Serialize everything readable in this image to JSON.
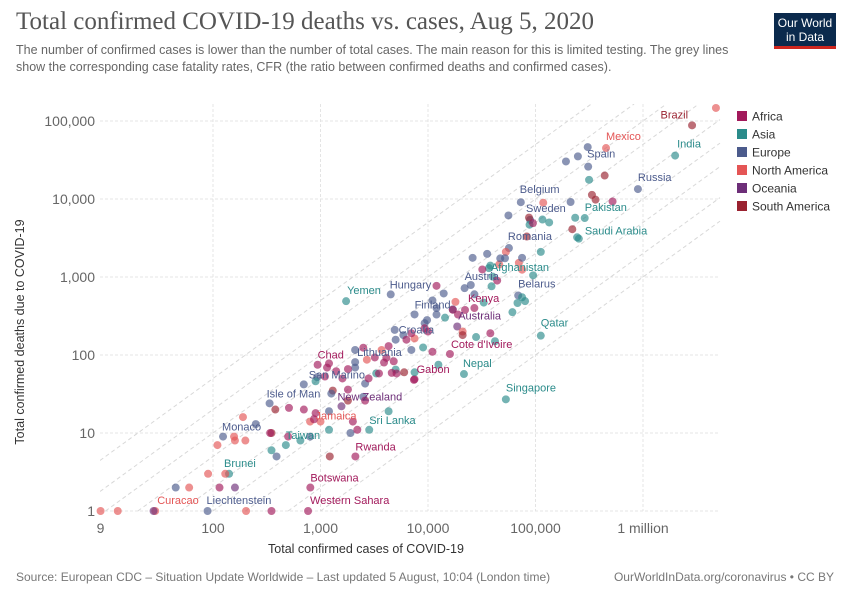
{
  "header": {
    "title": "Total confirmed COVID-19 deaths vs. cases, Aug 5, 2020",
    "subtitle": "The number of confirmed cases is lower than the number of total cases. The main reason for this is limited testing. The grey lines show the corresponding case fatality rates, CFR (the ratio between confirmed deaths and confirmed cases).",
    "logo": "Our World in Data"
  },
  "footer": {
    "source": "Source: European CDC – Situation Update Worldwide – Last updated 5 August, 10:04 (London time)",
    "url": "OurWorldInData.org/coronavirus • CC BY"
  },
  "chart_data": {
    "type": "scatter",
    "title": "Total confirmed COVID-19 deaths vs. cases, Aug 5, 2020",
    "xlabel": "Total confirmed cases of COVID-19",
    "ylabel": "Total confirmed deaths due to COVID-19",
    "xscale": "log",
    "yscale": "log",
    "xlim": [
      9,
      4900000
    ],
    "ylim": [
      1,
      150000
    ],
    "xticks": [
      {
        "v": 9,
        "label": "9"
      },
      {
        "v": 100,
        "label": "100"
      },
      {
        "v": 1000,
        "label": "1,000"
      },
      {
        "v": 10000,
        "label": "10,000"
      },
      {
        "v": 100000,
        "label": "100,000"
      },
      {
        "v": 1000000,
        "label": "1 million"
      }
    ],
    "yticks": [
      {
        "v": 1,
        "label": "1"
      },
      {
        "v": 10,
        "label": "10"
      },
      {
        "v": 100,
        "label": "100"
      },
      {
        "v": 1000,
        "label": "1,000"
      },
      {
        "v": 10000,
        "label": "10,000"
      },
      {
        "v": 100000,
        "label": "100,000"
      }
    ],
    "grid": true,
    "cfr_lines": [
      0.001,
      0.002,
      0.005,
      0.01,
      0.02,
      0.05,
      0.1,
      0.2,
      0.5
    ],
    "legend_position": "right",
    "legend": [
      {
        "name": "Africa",
        "color": "#a2195b"
      },
      {
        "name": "Asia",
        "color": "#2a8b8a"
      },
      {
        "name": "Europe",
        "color": "#4c5b8c"
      },
      {
        "name": "North America",
        "color": "#e45555"
      },
      {
        "name": "Oceania",
        "color": "#6d2e78"
      },
      {
        "name": "South America",
        "color": "#9a2230"
      }
    ],
    "points": [
      {
        "label": "Brazil",
        "c": "South America",
        "x": 2860000,
        "y": 88000
      },
      {
        "c": "North America",
        "x": 4770000,
        "y": 147000
      },
      {
        "label": "Mexico",
        "c": "North America",
        "x": 453000,
        "y": 45000
      },
      {
        "label": "India",
        "c": "Asia",
        "x": 1990000,
        "y": 36000
      },
      {
        "label": "Spain",
        "c": "Europe",
        "x": 309000,
        "y": 26000
      },
      {
        "label": "Russia",
        "c": "Europe",
        "x": 897000,
        "y": 13400
      },
      {
        "label": "Belgium",
        "c": "Europe",
        "x": 73000,
        "y": 9100
      },
      {
        "label": "Sweden",
        "c": "Europe",
        "x": 89000,
        "y": 5400
      },
      {
        "label": "Pakistan",
        "c": "Asia",
        "x": 287000,
        "y": 5700
      },
      {
        "label": "Saudi Arabia",
        "c": "Asia",
        "x": 253000,
        "y": 3100
      },
      {
        "label": "Romania",
        "c": "Europe",
        "x": 56600,
        "y": 2350
      },
      {
        "label": "Afghanistan",
        "c": "Asia",
        "x": 36900,
        "y": 1300
      },
      {
        "label": "Austria",
        "c": "Europe",
        "x": 21900,
        "y": 719
      },
      {
        "label": "Belarus",
        "c": "Europe",
        "x": 69000,
        "y": 580
      },
      {
        "label": "Qatar",
        "c": "Asia",
        "x": 112000,
        "y": 177
      },
      {
        "label": "Singapore",
        "c": "Asia",
        "x": 53000,
        "y": 27
      },
      {
        "label": "Nepal",
        "c": "Asia",
        "x": 21600,
        "y": 57
      },
      {
        "label": "Kenya",
        "c": "Africa",
        "x": 22100,
        "y": 378
      },
      {
        "label": "Finland",
        "c": "Europe",
        "x": 7500,
        "y": 331
      },
      {
        "label": "Australia",
        "c": "Oceania",
        "x": 18700,
        "y": 232
      },
      {
        "label": "Hungary",
        "c": "Europe",
        "x": 4500,
        "y": 598
      },
      {
        "label": "Yemen",
        "c": "Asia",
        "x": 1730,
        "y": 490
      },
      {
        "label": "Croatia",
        "c": "Europe",
        "x": 5000,
        "y": 157
      },
      {
        "label": "Cote d'Ivoire",
        "c": "Africa",
        "x": 16000,
        "y": 103
      },
      {
        "label": "Gabon",
        "c": "Africa",
        "x": 7500,
        "y": 49
      },
      {
        "label": "Lithuania",
        "c": "Europe",
        "x": 2100,
        "y": 81
      },
      {
        "label": "Chad",
        "c": "Africa",
        "x": 940,
        "y": 75
      },
      {
        "label": "San Marino",
        "c": "Europe",
        "x": 699,
        "y": 42
      },
      {
        "label": "Isle of Man",
        "c": "Europe",
        "x": 336,
        "y": 24
      },
      {
        "label": "New Zealand",
        "c": "Oceania",
        "x": 1567,
        "y": 22
      },
      {
        "label": "Jamaica",
        "c": "North America",
        "x": 1000,
        "y": 14
      },
      {
        "label": "Sri Lanka",
        "c": "Asia",
        "x": 2839,
        "y": 11
      },
      {
        "label": "Taiwan",
        "c": "Asia",
        "x": 476,
        "y": 7
      },
      {
        "label": "Monaco",
        "c": "Europe",
        "x": 124,
        "y": 9
      },
      {
        "label": "Brunei",
        "c": "Asia",
        "x": 141,
        "y": 3
      },
      {
        "label": "Rwanda",
        "c": "Africa",
        "x": 2111,
        "y": 5
      },
      {
        "label": "Botswana",
        "c": "Africa",
        "x": 804,
        "y": 2
      },
      {
        "label": "Curacao",
        "c": "North America",
        "x": 29,
        "y": 1
      },
      {
        "label": "Liechtenstein",
        "c": "Europe",
        "x": 89,
        "y": 1
      },
      {
        "label": "Western Sahara",
        "c": "Africa",
        "x": 766,
        "y": 1
      },
      {
        "c": "North America",
        "x": 118000,
        "y": 8960
      },
      {
        "c": "North America",
        "x": 53000,
        "y": 2100
      },
      {
        "c": "North America",
        "x": 46000,
        "y": 1450
      },
      {
        "c": "North America",
        "x": 75000,
        "y": 1240
      },
      {
        "c": "North America",
        "x": 70000,
        "y": 1520
      },
      {
        "c": "North America",
        "x": 21000,
        "y": 200
      },
      {
        "c": "North America",
        "x": 18000,
        "y": 480
      },
      {
        "c": "North America",
        "x": 2700,
        "y": 87
      },
      {
        "c": "North America",
        "x": 7500,
        "y": 163
      },
      {
        "c": "North America",
        "x": 160,
        "y": 8
      },
      {
        "c": "North America",
        "x": 800,
        "y": 14
      },
      {
        "c": "North America",
        "x": 110,
        "y": 7
      },
      {
        "c": "North America",
        "x": 3700,
        "y": 116
      },
      {
        "c": "North America",
        "x": 60,
        "y": 2
      },
      {
        "c": "North America",
        "x": 90,
        "y": 3
      },
      {
        "c": "North America",
        "x": 157,
        "y": 9
      },
      {
        "c": "North America",
        "x": 203,
        "y": 1
      },
      {
        "c": "North America",
        "x": 190,
        "y": 16
      },
      {
        "c": "North America",
        "x": 130,
        "y": 3
      },
      {
        "c": "North America",
        "x": 9,
        "y": 1
      },
      {
        "c": "North America",
        "x": 13,
        "y": 1
      },
      {
        "c": "North America",
        "x": 200,
        "y": 8
      },
      {
        "c": "South America",
        "x": 440000,
        "y": 20000
      },
      {
        "c": "South America",
        "x": 362000,
        "y": 9800
      },
      {
        "c": "South America",
        "x": 335000,
        "y": 11300
      },
      {
        "c": "South America",
        "x": 220000,
        "y": 4100
      },
      {
        "c": "South America",
        "x": 87000,
        "y": 5770
      },
      {
        "c": "South America",
        "x": 83000,
        "y": 3300
      },
      {
        "c": "South America",
        "x": 21000,
        "y": 180
      },
      {
        "c": "South America",
        "x": 6000,
        "y": 60
      },
      {
        "c": "South America",
        "x": 1300,
        "y": 35
      },
      {
        "c": "South America",
        "x": 380,
        "y": 20
      },
      {
        "c": "South America",
        "x": 1800,
        "y": 26
      },
      {
        "c": "South America",
        "x": 350,
        "y": 10
      },
      {
        "c": "South America",
        "x": 1220,
        "y": 5
      },
      {
        "c": "Europe",
        "x": 306000,
        "y": 46300
      },
      {
        "c": "Europe",
        "x": 248000,
        "y": 35200
      },
      {
        "c": "Europe",
        "x": 192000,
        "y": 30300
      },
      {
        "c": "Europe",
        "x": 212000,
        "y": 9150
      },
      {
        "c": "Europe",
        "x": 56000,
        "y": 6150
      },
      {
        "c": "Europe",
        "x": 26000,
        "y": 1760
      },
      {
        "c": "Europe",
        "x": 52000,
        "y": 1740
      },
      {
        "c": "Europe",
        "x": 35500,
        "y": 1980
      },
      {
        "c": "Europe",
        "x": 47000,
        "y": 1730
      },
      {
        "c": "Europe",
        "x": 75000,
        "y": 1760
      },
      {
        "c": "Europe",
        "x": 25000,
        "y": 790
      },
      {
        "c": "Europe",
        "x": 14000,
        "y": 615
      },
      {
        "c": "Europe",
        "x": 17000,
        "y": 385
      },
      {
        "c": "Europe",
        "x": 27000,
        "y": 600
      },
      {
        "c": "Europe",
        "x": 11000,
        "y": 500
      },
      {
        "c": "Europe",
        "x": 12000,
        "y": 330
      },
      {
        "c": "Europe",
        "x": 12000,
        "y": 400
      },
      {
        "c": "Europe",
        "x": 9300,
        "y": 256
      },
      {
        "c": "Europe",
        "x": 4900,
        "y": 210
      },
      {
        "c": "Europe",
        "x": 7000,
        "y": 116
      },
      {
        "c": "Europe",
        "x": 2100,
        "y": 116
      },
      {
        "c": "Europe",
        "x": 5900,
        "y": 180
      },
      {
        "c": "Europe",
        "x": 9800,
        "y": 280
      },
      {
        "c": "Europe",
        "x": 2500,
        "y": 29
      },
      {
        "c": "Europe",
        "x": 2100,
        "y": 69
      },
      {
        "c": "Europe",
        "x": 1260,
        "y": 32
      },
      {
        "c": "Europe",
        "x": 930,
        "y": 52
      },
      {
        "c": "Europe",
        "x": 1200,
        "y": 19
      },
      {
        "c": "Europe",
        "x": 800,
        "y": 9
      },
      {
        "c": "Europe",
        "x": 1900,
        "y": 10
      },
      {
        "c": "Europe",
        "x": 250,
        "y": 13
      },
      {
        "c": "Europe",
        "x": 2600,
        "y": 43
      },
      {
        "c": "Europe",
        "x": 45,
        "y": 2
      },
      {
        "c": "Europe",
        "x": 390,
        "y": 5
      },
      {
        "c": "Asia",
        "x": 315000,
        "y": 17600
      },
      {
        "c": "Asia",
        "x": 244000,
        "y": 3230
      },
      {
        "c": "Asia",
        "x": 234000,
        "y": 5750
      },
      {
        "c": "Asia",
        "x": 134000,
        "y": 5000
      },
      {
        "c": "Asia",
        "x": 112000,
        "y": 2100
      },
      {
        "c": "Asia",
        "x": 116000,
        "y": 5450
      },
      {
        "c": "Asia",
        "x": 75000,
        "y": 550
      },
      {
        "c": "Asia",
        "x": 95000,
        "y": 1050
      },
      {
        "c": "Asia",
        "x": 61000,
        "y": 354
      },
      {
        "c": "Asia",
        "x": 68000,
        "y": 464
      },
      {
        "c": "Asia",
        "x": 80000,
        "y": 490
      },
      {
        "c": "Asia",
        "x": 42000,
        "y": 150
      },
      {
        "c": "Asia",
        "x": 88000,
        "y": 4680
      },
      {
        "c": "Asia",
        "x": 40000,
        "y": 1010
      },
      {
        "c": "Asia",
        "x": 39000,
        "y": 760
      },
      {
        "c": "Asia",
        "x": 33000,
        "y": 470
      },
      {
        "c": "Asia",
        "x": 28000,
        "y": 170
      },
      {
        "c": "Asia",
        "x": 38000,
        "y": 1400
      },
      {
        "c": "Asia",
        "x": 9000,
        "y": 125
      },
      {
        "c": "Asia",
        "x": 14400,
        "y": 301
      },
      {
        "c": "Asia",
        "x": 5000,
        "y": 65
      },
      {
        "c": "Asia",
        "x": 1200,
        "y": 11
      },
      {
        "c": "Asia",
        "x": 7500,
        "y": 60
      },
      {
        "c": "Asia",
        "x": 900,
        "y": 46
      },
      {
        "c": "Asia",
        "x": 12500,
        "y": 75
      },
      {
        "c": "Asia",
        "x": 3300,
        "y": 58
      },
      {
        "c": "Asia",
        "x": 4300,
        "y": 19
      },
      {
        "c": "Asia",
        "x": 350,
        "y": 6
      },
      {
        "c": "Asia",
        "x": 650,
        "y": 8
      },
      {
        "c": "Africa",
        "x": 521000,
        "y": 9300
      },
      {
        "c": "Africa",
        "x": 94700,
        "y": 4900
      },
      {
        "c": "Africa",
        "x": 44000,
        "y": 900
      },
      {
        "c": "Africa",
        "x": 32000,
        "y": 1250
      },
      {
        "c": "Africa",
        "x": 27000,
        "y": 400
      },
      {
        "c": "Africa",
        "x": 38000,
        "y": 190
      },
      {
        "c": "Africa",
        "x": 17000,
        "y": 380
      },
      {
        "c": "Africa",
        "x": 12000,
        "y": 770
      },
      {
        "c": "Africa",
        "x": 19000,
        "y": 330
      },
      {
        "c": "Africa",
        "x": 10000,
        "y": 200
      },
      {
        "c": "Africa",
        "x": 9300,
        "y": 220
      },
      {
        "c": "Africa",
        "x": 7400,
        "y": 48
      },
      {
        "c": "Africa",
        "x": 6300,
        "y": 157
      },
      {
        "c": "Africa",
        "x": 11000,
        "y": 110
      },
      {
        "c": "Africa",
        "x": 7000,
        "y": 190
      },
      {
        "c": "Africa",
        "x": 4300,
        "y": 130
      },
      {
        "c": "Africa",
        "x": 2500,
        "y": 124
      },
      {
        "c": "Africa",
        "x": 1150,
        "y": 69
      },
      {
        "c": "Africa",
        "x": 3200,
        "y": 93
      },
      {
        "c": "Africa",
        "x": 1800,
        "y": 66
      },
      {
        "c": "Africa",
        "x": 1200,
        "y": 78
      },
      {
        "c": "Africa",
        "x": 1100,
        "y": 53
      },
      {
        "c": "Africa",
        "x": 3900,
        "y": 80
      },
      {
        "c": "Africa",
        "x": 900,
        "y": 18
      },
      {
        "c": "Africa",
        "x": 509,
        "y": 21
      },
      {
        "c": "Africa",
        "x": 4800,
        "y": 83
      },
      {
        "c": "Africa",
        "x": 4100,
        "y": 92
      },
      {
        "c": "Africa",
        "x": 1600,
        "y": 50
      },
      {
        "c": "Africa",
        "x": 2800,
        "y": 50
      },
      {
        "c": "Africa",
        "x": 2200,
        "y": 11
      },
      {
        "c": "Africa",
        "x": 500,
        "y": 9
      },
      {
        "c": "Africa",
        "x": 1400,
        "y": 62
      },
      {
        "c": "Africa",
        "x": 1800,
        "y": 36
      },
      {
        "c": "Africa",
        "x": 3500,
        "y": 58
      },
      {
        "c": "Africa",
        "x": 870,
        "y": 15
      },
      {
        "c": "Africa",
        "x": 2600,
        "y": 26
      },
      {
        "c": "Africa",
        "x": 700,
        "y": 20
      },
      {
        "c": "Africa",
        "x": 2000,
        "y": 14
      },
      {
        "c": "Africa",
        "x": 4600,
        "y": 59
      },
      {
        "c": "Africa",
        "x": 5100,
        "y": 58
      },
      {
        "c": "Africa",
        "x": 340,
        "y": 10
      },
      {
        "c": "Africa",
        "x": 115,
        "y": 2
      },
      {
        "c": "Africa",
        "x": 350,
        "y": 1
      },
      {
        "c": "Oceania",
        "x": 28,
        "y": 1
      },
      {
        "c": "Oceania",
        "x": 160,
        "y": 2
      }
    ]
  }
}
